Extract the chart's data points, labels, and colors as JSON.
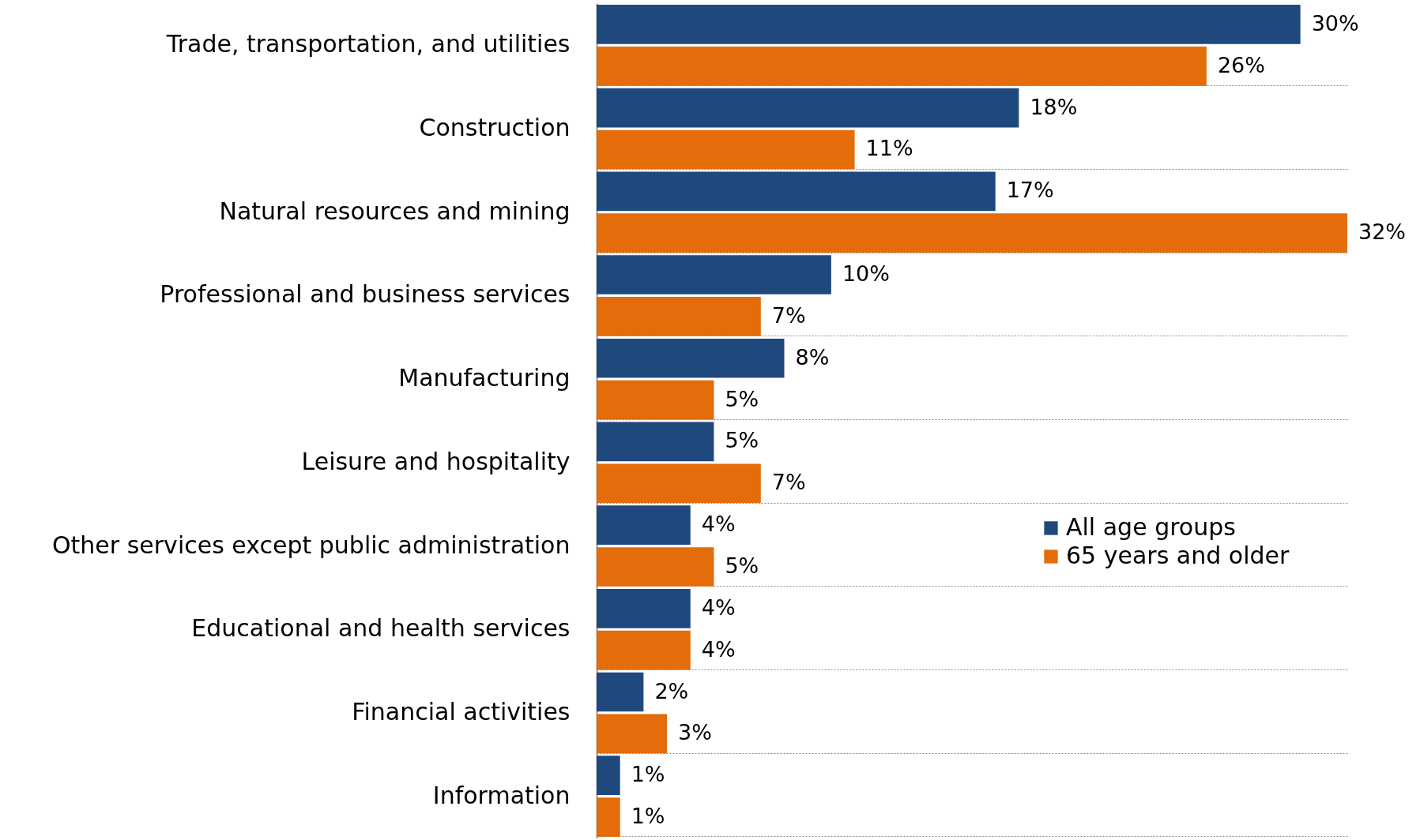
{
  "chart_data": {
    "type": "bar",
    "orientation": "horizontal",
    "categories": [
      "Trade, transportation, and utilities",
      "Construction",
      "Natural resources and mining",
      "Professional and business services",
      "Manufacturing",
      "Leisure and hospitality",
      "Other services except public administration",
      "Educational and health services",
      "Financial activities",
      "Information"
    ],
    "series": [
      {
        "name": "All age groups",
        "color": "#1f497d",
        "values": [
          30,
          18,
          17,
          10,
          8,
          5,
          4,
          4,
          2,
          1
        ],
        "value_labels": [
          "30%",
          "18%",
          "17%",
          "10%",
          "8%",
          "5%",
          "4%",
          "4%",
          "2%",
          "1%"
        ]
      },
      {
        "name": "65 years and older",
        "color": "#e46c0a",
        "values": [
          26,
          11,
          32,
          7,
          5,
          7,
          5,
          4,
          3,
          1
        ],
        "value_labels": [
          "26%",
          "11%",
          "32%",
          "7%",
          "5%",
          "7%",
          "5%",
          "4%",
          "3%",
          "1%"
        ]
      }
    ],
    "grid": "y",
    "legend": "right"
  }
}
